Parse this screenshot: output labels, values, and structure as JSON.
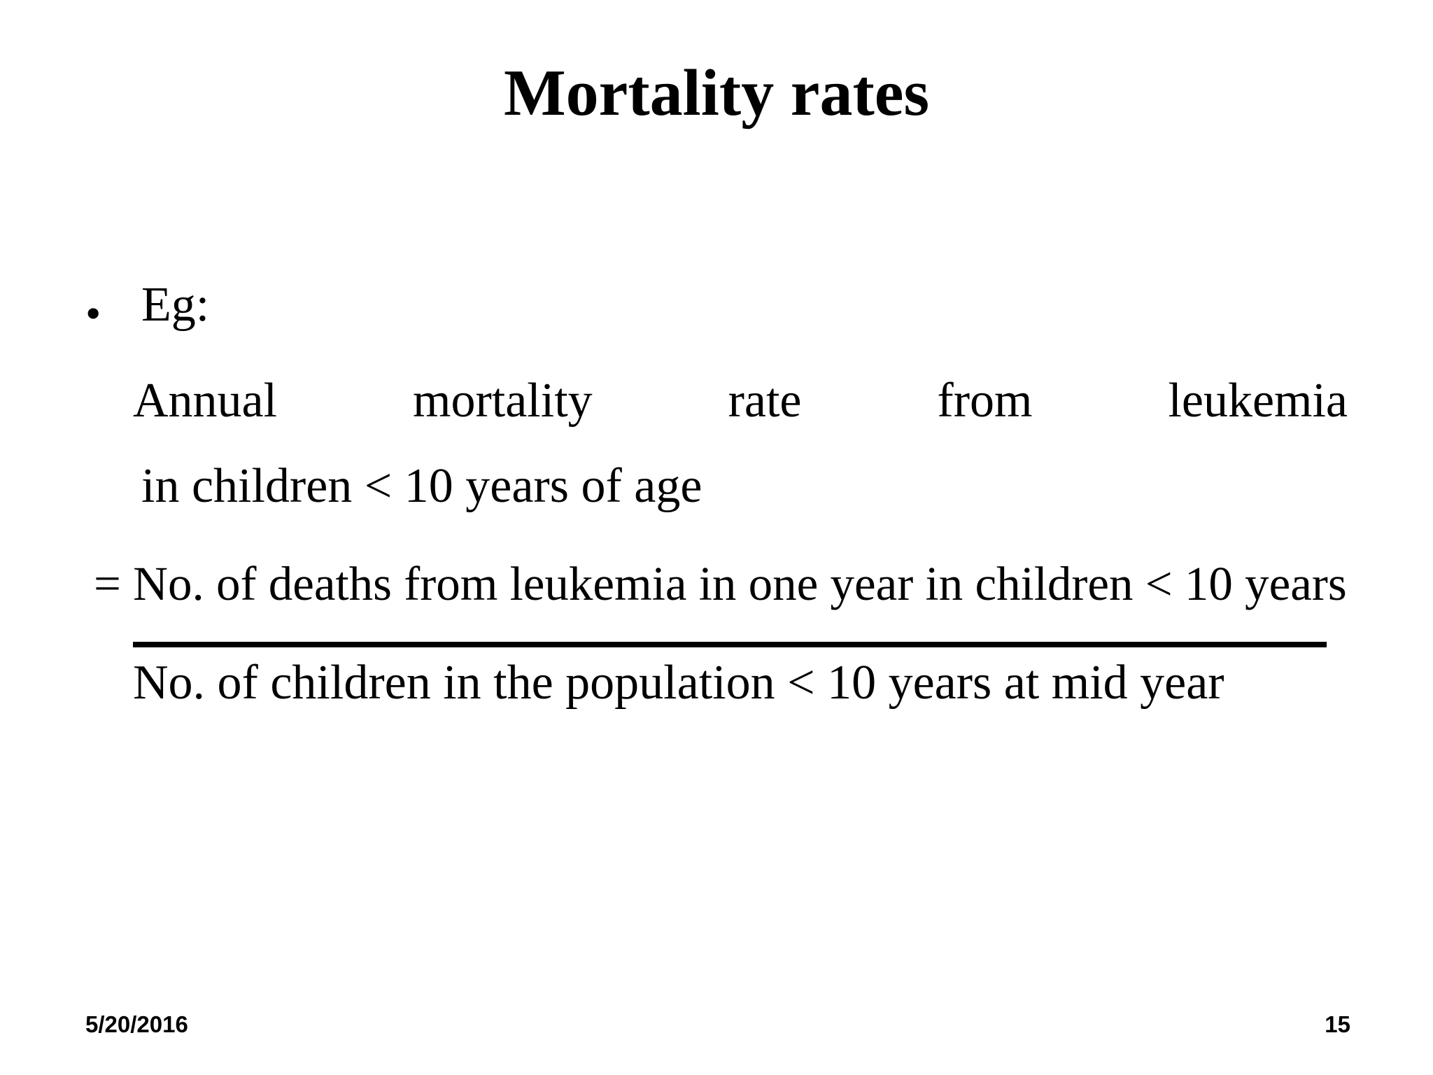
{
  "slide": {
    "title": "Mortality rates",
    "bullet": {
      "marker": "•",
      "label": "Eg:"
    },
    "justified_line": {
      "words": [
        "Annual",
        "mortality",
        "rate",
        "from",
        "leukemia"
      ],
      "continuation": "in children < 10 years of age"
    },
    "equation": {
      "numerator": "= No. of deaths from leukemia in one year in children < 10 years",
      "denominator": "No. of children in the population < 10 years at mid year"
    },
    "footer": {
      "date": "5/20/2016",
      "page_number": "15"
    },
    "colors": {
      "background": "#ffffff",
      "text": "#000000"
    }
  }
}
